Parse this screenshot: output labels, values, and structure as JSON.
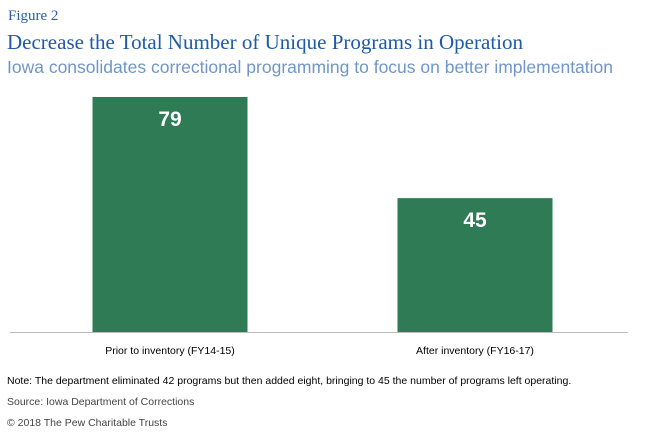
{
  "header": {
    "figure_label": "Figure 2",
    "title": "Decrease the Total Number of Unique Programs in Operation",
    "subtitle": "Iowa consolidates correctional programming to focus on better implementation"
  },
  "chart_data": {
    "type": "bar",
    "categories": [
      "Prior to inventory (FY14-15)",
      "After inventory (FY16-17)"
    ],
    "values": [
      79,
      45
    ],
    "title": "",
    "xlabel": "",
    "ylabel": "",
    "ylim": [
      0,
      79
    ],
    "grid": false,
    "data_labels": true
  },
  "footer": {
    "note": "Note: The department eliminated 42 programs but then added eight, bringing to 45 the number of programs left operating.",
    "source": "Source: Iowa Department of Corrections",
    "copyright": "© 2018 The Pew Charitable Trusts"
  },
  "colors": {
    "bar": "#2e7b55",
    "label_text": "#ffffff",
    "axis": "#bbbbbb",
    "title": "#1f5aa6",
    "subtitle": "#6f96c9"
  }
}
